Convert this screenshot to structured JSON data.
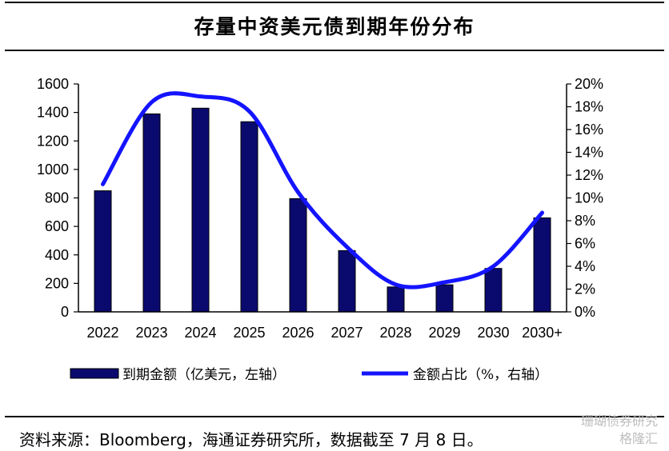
{
  "title": "存量中资美元债到期年份分布",
  "source": "资料来源：Bloomberg，海通证券研究所，数据截至 7 月 8 日。",
  "watermark": {
    "line1": "珊瑚债券研究",
    "line2": "格隆汇"
  },
  "colors": {
    "bar": "#0a0a6e",
    "bar_edge": "#000000",
    "line": "#1414ff"
  },
  "chart_data": {
    "type": "bar",
    "categories": [
      "2022",
      "2023",
      "2024",
      "2025",
      "2026",
      "2027",
      "2028",
      "2029",
      "2030",
      "2030+"
    ],
    "series": [
      {
        "name": "到期金额（亿美元，左轴）",
        "type": "bar",
        "axis": "left",
        "values": [
          850,
          1390,
          1430,
          1335,
          795,
          430,
          175,
          190,
          305,
          660
        ]
      },
      {
        "name": "金额占比（%，右轴）",
        "type": "line",
        "axis": "right",
        "values": [
          11.2,
          18.4,
          18.9,
          17.6,
          10.5,
          5.7,
          2.4,
          2.6,
          4.0,
          8.7
        ]
      }
    ],
    "y_left": {
      "min": 0,
      "max": 1600,
      "step": 200,
      "tick_labels": [
        "0",
        "200",
        "400",
        "600",
        "800",
        "1000",
        "1200",
        "1400",
        "1600"
      ]
    },
    "y_right": {
      "min": 0,
      "max": 20,
      "step": 2,
      "tick_labels": [
        "0%",
        "2%",
        "4%",
        "6%",
        "8%",
        "10%",
        "12%",
        "14%",
        "16%",
        "18%",
        "20%"
      ]
    },
    "grid": false,
    "legend_position": "bottom"
  }
}
